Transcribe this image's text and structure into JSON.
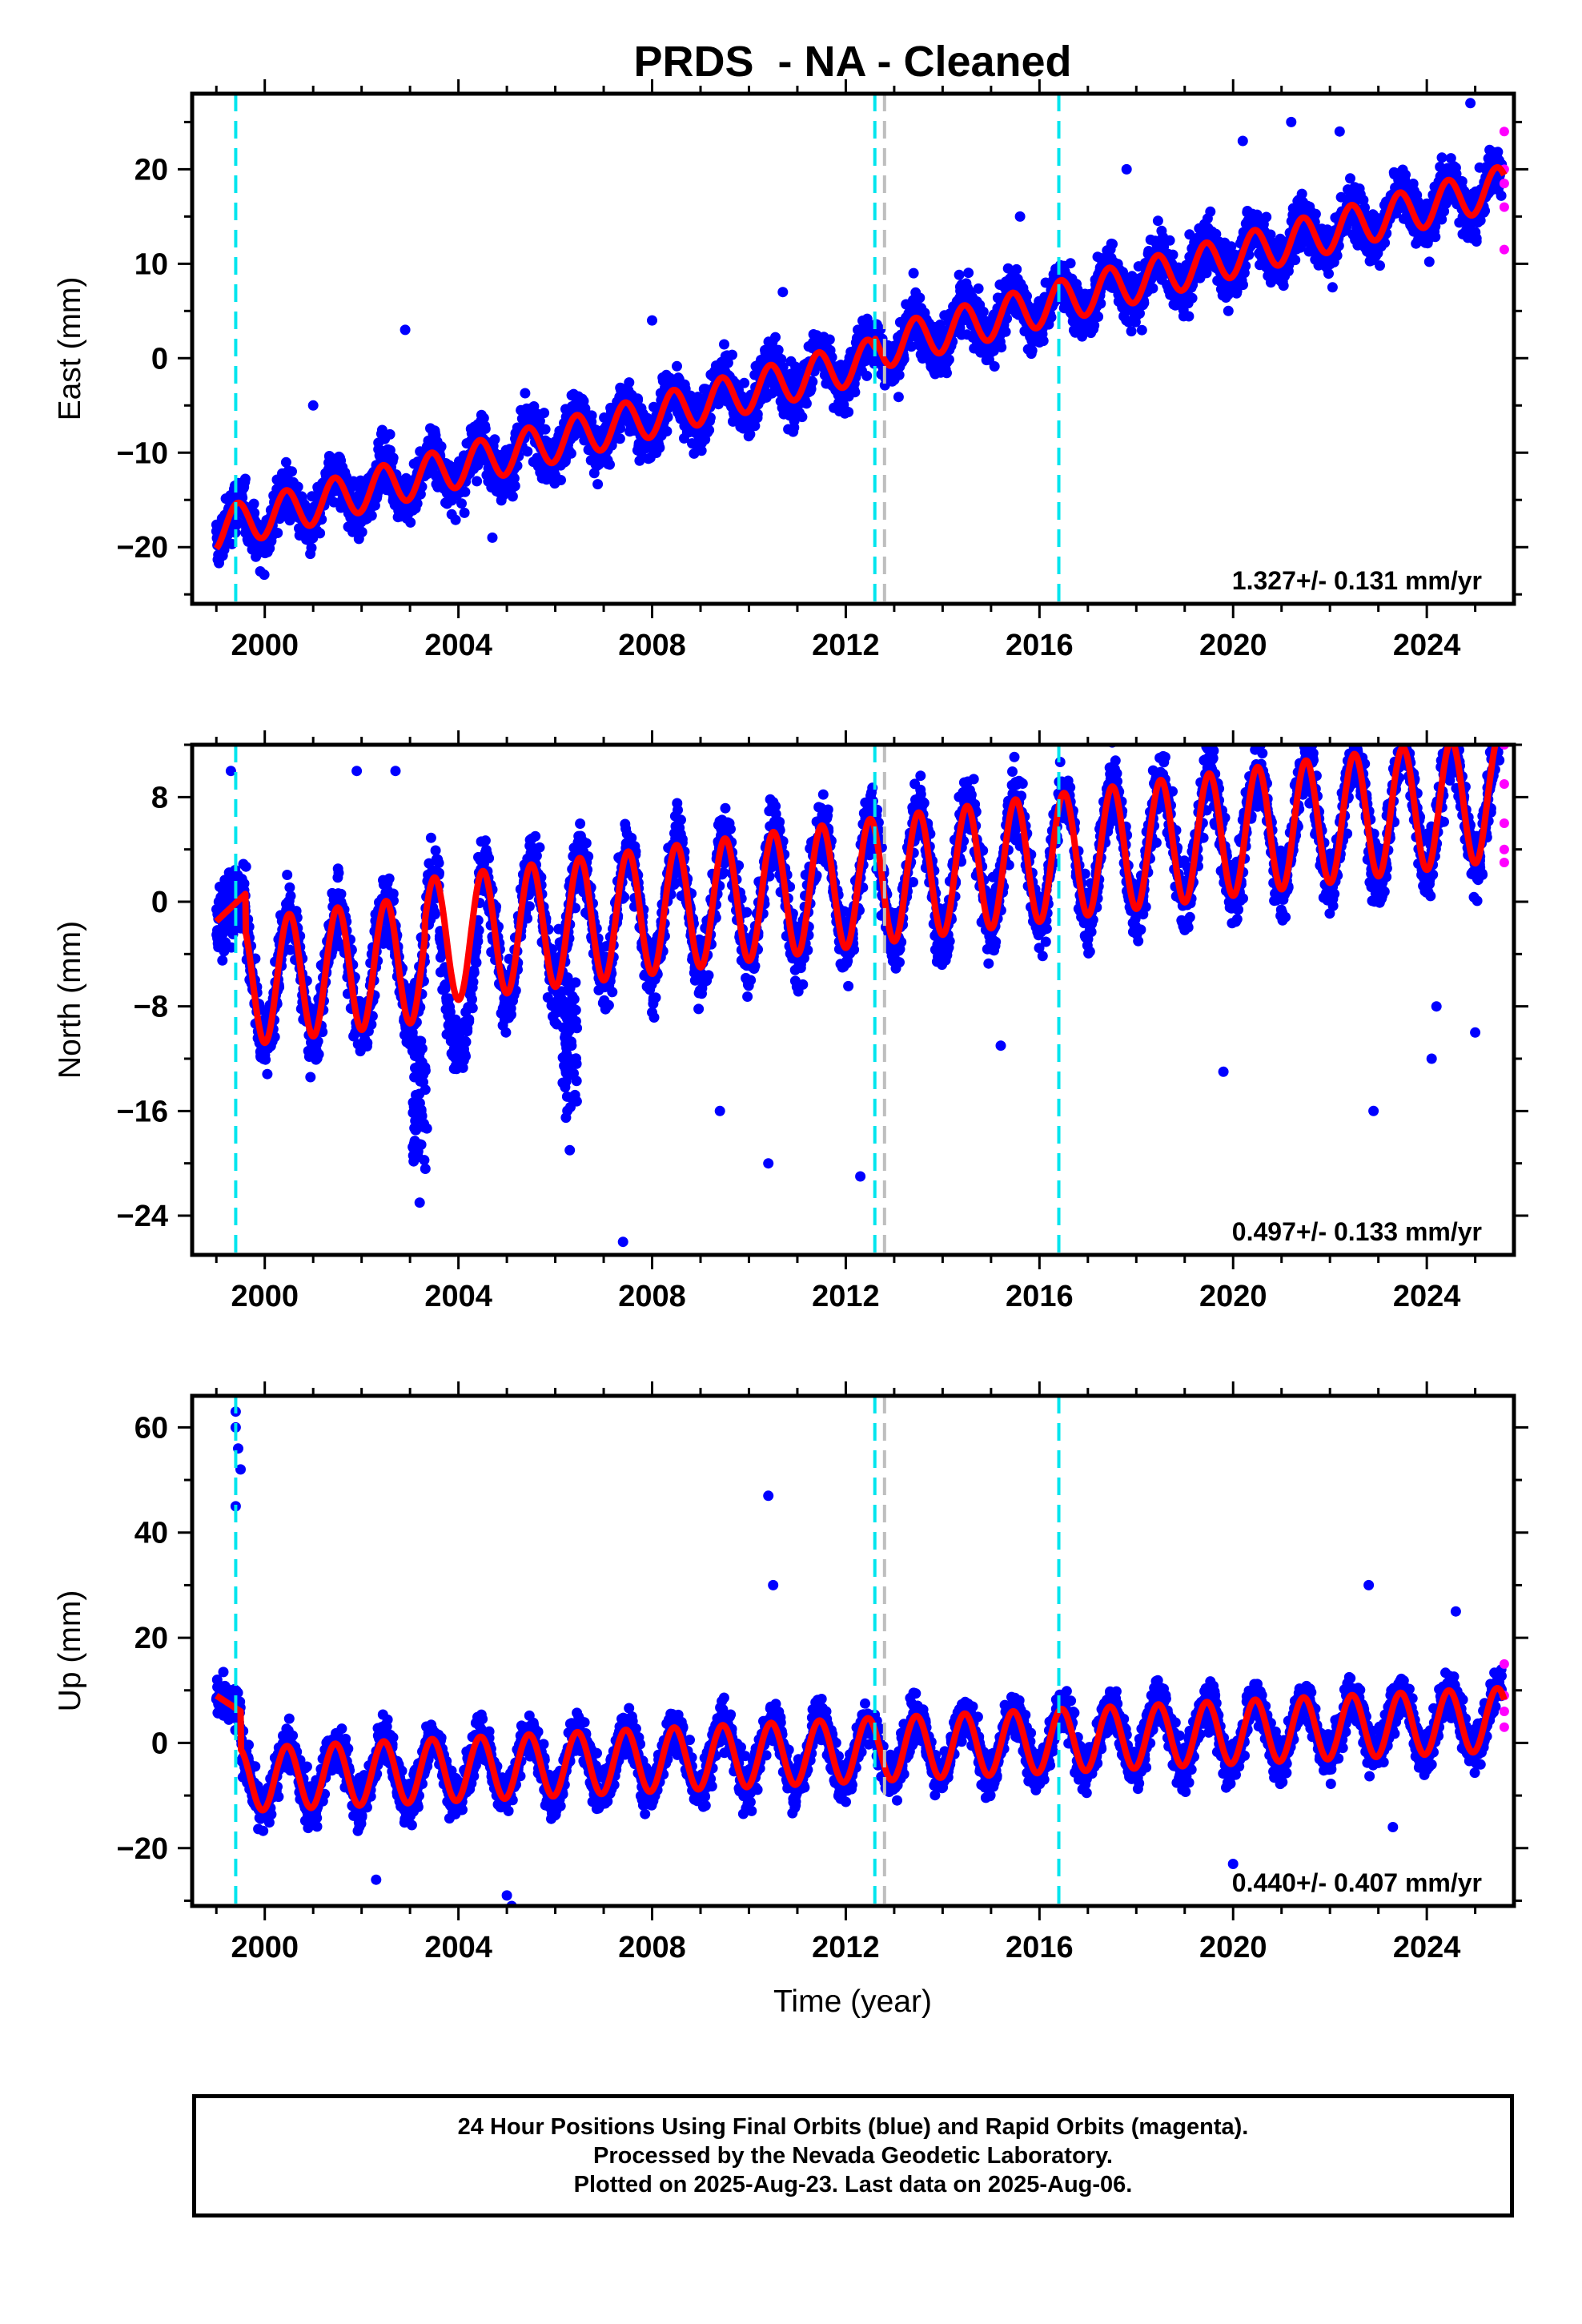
{
  "title": "PRDS  - NA - Cleaned",
  "xlabel": "Time (year)",
  "footer": {
    "lines": [
      "24 Hour Positions Using Final Orbits (blue) and Rapid Orbits (magenta).",
      "Processed by the Nevada Geodetic Laboratory.",
      "Plotted on 2025-Aug-23. Last data on 2025-Aug-06."
    ]
  },
  "colors": {
    "final_orbits": "#0000ff",
    "rapid_orbits": "#ff00ff",
    "model_fit": "#ff0000",
    "equipment_change": "#00e5ee",
    "other_event": "#bebebe"
  },
  "chart_data": [
    {
      "type": "scatter",
      "component": "east",
      "ylabel": "East (mm)",
      "xlim": [
        1998.5,
        2025.8
      ],
      "ylim": [
        -26,
        28
      ],
      "xticks": [
        2000,
        2004,
        2008,
        2012,
        2016,
        2020,
        2024
      ],
      "yticks": [
        -20,
        -10,
        0,
        10,
        20
      ],
      "velocity_label": "1.327+/- 0.131 mm/yr",
      "rate": 1.327,
      "offset_2012": -18.1,
      "amplitude": 2.2,
      "noise": 2.6,
      "rapid_values": [
        24,
        20,
        18.5,
        16,
        11.5
      ],
      "outliers": [
        [
          2001.0,
          -5
        ],
        [
          2002.9,
          3
        ],
        [
          2004.7,
          -19
        ],
        [
          2008.0,
          4
        ],
        [
          2010.7,
          7
        ],
        [
          2013.4,
          9
        ],
        [
          2015.6,
          15
        ],
        [
          2017.8,
          20
        ],
        [
          2020.2,
          23
        ],
        [
          2021.2,
          25
        ],
        [
          2022.2,
          24
        ],
        [
          2024.9,
          27
        ]
      ]
    },
    {
      "type": "scatter",
      "component": "north",
      "ylabel": "North (mm)",
      "xlim": [
        1998.5,
        2025.8
      ],
      "ylim": [
        -27,
        12
      ],
      "xticks": [
        2000,
        2004,
        2008,
        2012,
        2016,
        2020,
        2024
      ],
      "yticks": [
        -24,
        -16,
        -8,
        0,
        8
      ],
      "velocity_label": "0.497+/- 0.133 mm/yr",
      "rate": 0.497,
      "amplitude": 4.8,
      "noise": 2.4,
      "rapid_values": [
        12,
        9,
        6,
        4,
        3
      ],
      "outliers": [
        [
          1999.3,
          10
        ],
        [
          2001.9,
          10
        ],
        [
          2002.7,
          10
        ],
        [
          2003.2,
          -23
        ],
        [
          2003.1,
          -19
        ],
        [
          2006.3,
          -19
        ],
        [
          2007.4,
          -26
        ],
        [
          2009.4,
          -16
        ],
        [
          2010.4,
          -20
        ],
        [
          2012.3,
          -21
        ],
        [
          2015.2,
          -11
        ],
        [
          2019.8,
          -13
        ],
        [
          2022.9,
          -16
        ],
        [
          2024.2,
          -8
        ],
        [
          2024.1,
          -12
        ],
        [
          2025.0,
          -10
        ]
      ]
    },
    {
      "type": "scatter",
      "component": "up",
      "ylabel": "Up (mm)",
      "xlim": [
        1998.5,
        2025.8
      ],
      "ylim": [
        -31,
        66
      ],
      "xticks": [
        2000,
        2004,
        2008,
        2012,
        2016,
        2020,
        2024
      ],
      "yticks": [
        -20,
        0,
        20,
        40,
        60
      ],
      "velocity_label": "0.440+/- 0.407 mm/yr",
      "rate": 0.44,
      "amplitude": 6.0,
      "noise": 4.0,
      "rapid_values": [
        15,
        9,
        6,
        3
      ],
      "outliers": [
        [
          1999.4,
          63
        ],
        [
          1999.4,
          60
        ],
        [
          1999.45,
          56
        ],
        [
          1999.5,
          52
        ],
        [
          1999.4,
          45
        ],
        [
          2010.4,
          47
        ],
        [
          2010.5,
          30
        ],
        [
          2005.0,
          -29
        ],
        [
          2005.1,
          -31
        ],
        [
          2002.3,
          -26
        ],
        [
          2020.0,
          -23
        ],
        [
          2022.8,
          30
        ],
        [
          2023.3,
          -16
        ],
        [
          2024.6,
          25
        ]
      ]
    }
  ],
  "event_lines": {
    "equipment_change": [
      1999.4,
      2012.6,
      2016.4
    ],
    "other_event": [
      2012.8
    ]
  }
}
